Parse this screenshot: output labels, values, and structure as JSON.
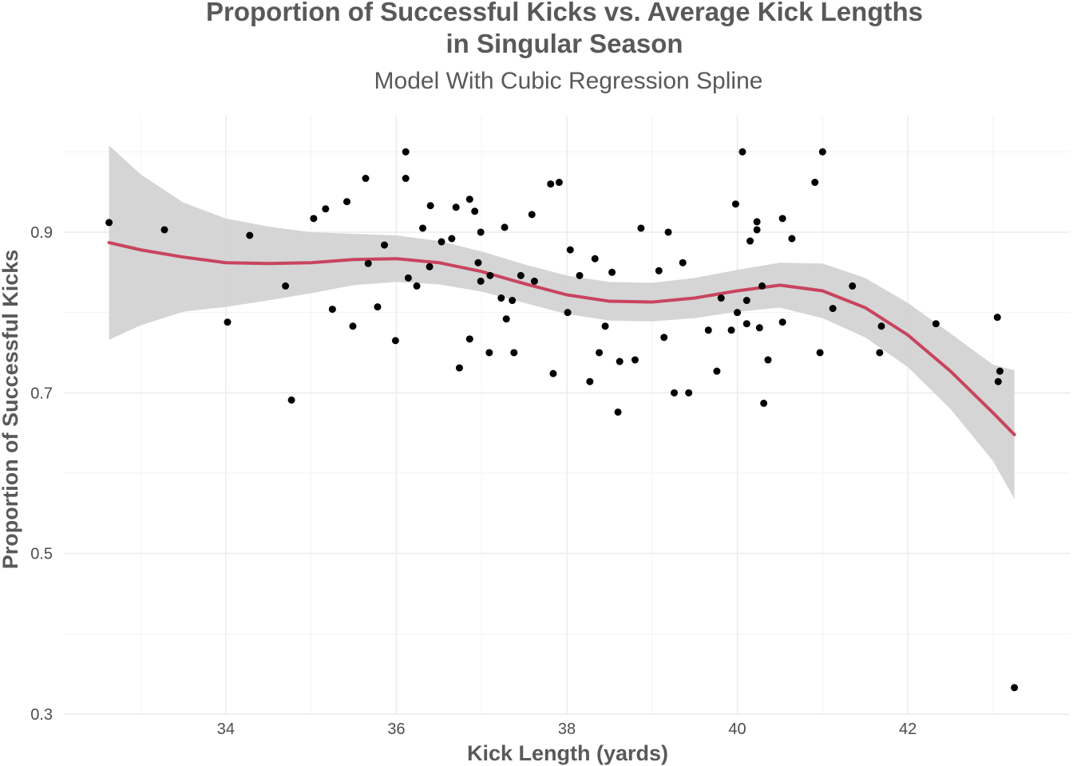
{
  "chart_data": {
    "type": "scatter",
    "title": "Proportion of Successful Kicks vs. Average Kick Lengths",
    "title_line2": "in Singular Season",
    "subtitle": "Model With Cubic Regression Spline",
    "xlabel": "Kick Length (yards)",
    "ylabel": "Proportion of Successful Kicks",
    "xlim": [
      32.1,
      43.9
    ],
    "ylim": [
      0.3,
      1.045
    ],
    "x_ticks": [
      34,
      36,
      38,
      40,
      42
    ],
    "x_tick_labels": [
      "34",
      "36",
      "38",
      "40",
      "42"
    ],
    "y_ticks": [
      0.3,
      0.5,
      0.7,
      0.9
    ],
    "y_tick_labels": [
      "0.3",
      "0.5",
      "0.7",
      "0.9"
    ],
    "grid": true,
    "colors": {
      "points": "#000000",
      "fit_line": "#c8445f",
      "confidence_band": "#d3d3d3",
      "grid": "#ebebeb"
    },
    "points": [
      [
        32.63,
        0.912
      ],
      [
        33.28,
        0.903
      ],
      [
        34.02,
        0.788
      ],
      [
        34.28,
        0.896
      ],
      [
        34.7,
        0.833
      ],
      [
        34.77,
        0.691
      ],
      [
        35.03,
        0.917
      ],
      [
        35.17,
        0.929
      ],
      [
        35.25,
        0.804
      ],
      [
        35.42,
        0.938
      ],
      [
        35.49,
        0.783
      ],
      [
        35.64,
        0.967
      ],
      [
        35.67,
        0.861
      ],
      [
        35.78,
        0.807
      ],
      [
        35.86,
        0.884
      ],
      [
        35.99,
        0.765
      ],
      [
        36.11,
        1.0
      ],
      [
        36.11,
        0.967
      ],
      [
        36.14,
        0.843
      ],
      [
        36.24,
        0.833
      ],
      [
        36.31,
        0.905
      ],
      [
        36.39,
        0.857
      ],
      [
        36.4,
        0.933
      ],
      [
        36.53,
        0.888
      ],
      [
        36.65,
        0.892
      ],
      [
        36.7,
        0.931
      ],
      [
        36.74,
        0.731
      ],
      [
        36.86,
        0.941
      ],
      [
        36.86,
        0.767
      ],
      [
        36.92,
        0.926
      ],
      [
        36.96,
        0.862
      ],
      [
        36.99,
        0.9
      ],
      [
        36.99,
        0.839
      ],
      [
        37.1,
        0.846
      ],
      [
        37.09,
        0.75
      ],
      [
        37.23,
        0.818
      ],
      [
        37.27,
        0.906
      ],
      [
        37.29,
        0.792
      ],
      [
        37.38,
        0.75
      ],
      [
        37.36,
        0.815
      ],
      [
        37.46,
        0.846
      ],
      [
        37.59,
        0.922
      ],
      [
        37.62,
        0.839
      ],
      [
        37.81,
        0.96
      ],
      [
        37.84,
        0.724
      ],
      [
        37.91,
        0.962
      ],
      [
        38.01,
        0.8
      ],
      [
        38.04,
        0.878
      ],
      [
        38.15,
        0.846
      ],
      [
        38.27,
        0.714
      ],
      [
        38.33,
        0.867
      ],
      [
        38.38,
        0.75
      ],
      [
        38.45,
        0.783
      ],
      [
        38.53,
        0.85
      ],
      [
        38.62,
        0.739
      ],
      [
        38.6,
        0.676
      ],
      [
        38.8,
        0.741
      ],
      [
        38.87,
        0.905
      ],
      [
        39.08,
        0.852
      ],
      [
        39.14,
        0.769
      ],
      [
        39.19,
        0.9
      ],
      [
        39.26,
        0.7
      ],
      [
        39.36,
        0.862
      ],
      [
        39.43,
        0.7
      ],
      [
        39.66,
        0.778
      ],
      [
        39.76,
        0.727
      ],
      [
        39.81,
        0.818
      ],
      [
        39.93,
        0.778
      ],
      [
        39.98,
        0.935
      ],
      [
        40.0,
        0.8
      ],
      [
        40.06,
        1.0
      ],
      [
        40.11,
        0.815
      ],
      [
        40.11,
        0.786
      ],
      [
        40.15,
        0.889
      ],
      [
        40.23,
        0.903
      ],
      [
        40.23,
        0.913
      ],
      [
        40.26,
        0.781
      ],
      [
        40.29,
        0.833
      ],
      [
        40.31,
        0.687
      ],
      [
        40.36,
        0.741
      ],
      [
        40.53,
        0.917
      ],
      [
        40.53,
        0.788
      ],
      [
        40.64,
        0.892
      ],
      [
        40.91,
        0.962
      ],
      [
        40.97,
        0.75
      ],
      [
        41.0,
        1.0
      ],
      [
        41.12,
        0.805
      ],
      [
        41.35,
        0.833
      ],
      [
        41.67,
        0.75
      ],
      [
        41.69,
        0.783
      ],
      [
        42.33,
        0.786
      ],
      [
        43.05,
        0.794
      ],
      [
        43.06,
        0.714
      ],
      [
        43.08,
        0.727
      ],
      [
        43.25,
        0.333
      ]
    ],
    "fit": [
      [
        32.63,
        0.887
      ],
      [
        33.0,
        0.878
      ],
      [
        33.5,
        0.869
      ],
      [
        34.0,
        0.862
      ],
      [
        34.5,
        0.861
      ],
      [
        35.0,
        0.862
      ],
      [
        35.5,
        0.866
      ],
      [
        36.0,
        0.867
      ],
      [
        36.5,
        0.862
      ],
      [
        37.0,
        0.851
      ],
      [
        37.5,
        0.836
      ],
      [
        38.0,
        0.822
      ],
      [
        38.5,
        0.814
      ],
      [
        39.0,
        0.813
      ],
      [
        39.5,
        0.818
      ],
      [
        40.0,
        0.827
      ],
      [
        40.5,
        0.834
      ],
      [
        41.0,
        0.827
      ],
      [
        41.5,
        0.806
      ],
      [
        42.0,
        0.772
      ],
      [
        42.5,
        0.727
      ],
      [
        43.0,
        0.675
      ],
      [
        43.25,
        0.648
      ]
    ],
    "ci_upper": [
      [
        32.63,
        1.008
      ],
      [
        33.0,
        0.972
      ],
      [
        33.5,
        0.937
      ],
      [
        34.0,
        0.917
      ],
      [
        34.5,
        0.907
      ],
      [
        35.0,
        0.9
      ],
      [
        35.5,
        0.898
      ],
      [
        36.0,
        0.896
      ],
      [
        36.5,
        0.889
      ],
      [
        37.0,
        0.876
      ],
      [
        37.5,
        0.86
      ],
      [
        38.0,
        0.846
      ],
      [
        38.5,
        0.838
      ],
      [
        39.0,
        0.837
      ],
      [
        39.5,
        0.843
      ],
      [
        40.0,
        0.853
      ],
      [
        40.5,
        0.862
      ],
      [
        41.0,
        0.861
      ],
      [
        41.5,
        0.843
      ],
      [
        42.0,
        0.812
      ],
      [
        42.5,
        0.774
      ],
      [
        43.0,
        0.735
      ],
      [
        43.25,
        0.728
      ]
    ],
    "ci_lower": [
      [
        32.63,
        0.766
      ],
      [
        33.0,
        0.784
      ],
      [
        33.5,
        0.801
      ],
      [
        34.0,
        0.807
      ],
      [
        34.5,
        0.815
      ],
      [
        35.0,
        0.824
      ],
      [
        35.5,
        0.834
      ],
      [
        36.0,
        0.838
      ],
      [
        36.5,
        0.835
      ],
      [
        37.0,
        0.826
      ],
      [
        37.5,
        0.812
      ],
      [
        38.0,
        0.798
      ],
      [
        38.5,
        0.79
      ],
      [
        39.0,
        0.789
      ],
      [
        39.5,
        0.793
      ],
      [
        40.0,
        0.801
      ],
      [
        40.5,
        0.806
      ],
      [
        41.0,
        0.793
      ],
      [
        41.5,
        0.769
      ],
      [
        42.0,
        0.732
      ],
      [
        42.5,
        0.68
      ],
      [
        43.0,
        0.615
      ],
      [
        43.25,
        0.568
      ]
    ]
  }
}
